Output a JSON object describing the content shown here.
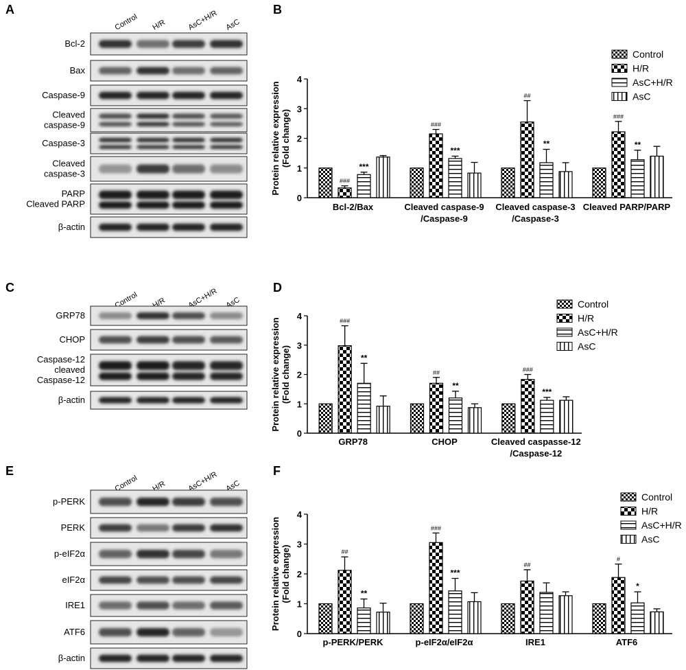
{
  "figure": {
    "blots": [
      {
        "panel_label": "A",
        "lane_labels": [
          "Control",
          "H/R",
          "AsC+H/R",
          "AsC"
        ],
        "rows": [
          {
            "label": "Bcl-2",
            "intensity": [
              0.85,
              0.55,
              0.8,
              0.85
            ]
          },
          {
            "label": "Bax",
            "intensity": [
              0.6,
              0.85,
              0.55,
              0.6
            ]
          },
          {
            "label": "Caspase-9",
            "intensity": [
              0.9,
              0.9,
              0.9,
              0.9
            ]
          },
          {
            "label": "Cleaved\ncaspase-9",
            "intensity": [
              0.7,
              0.85,
              0.7,
              0.65
            ],
            "double": true
          },
          {
            "label": "Caspase-3",
            "intensity": [
              0.85,
              0.85,
              0.85,
              0.85
            ],
            "double": true
          },
          {
            "label": "Cleaved\ncaspase-3",
            "intensity": [
              0.35,
              0.8,
              0.55,
              0.4
            ]
          },
          {
            "label": "PARP\nCleaved PARP",
            "intensity": [
              0.95,
              0.95,
              0.95,
              0.95
            ],
            "double": true,
            "tall": true
          },
          {
            "label": "β-actin",
            "intensity": [
              0.9,
              0.9,
              0.9,
              0.9
            ]
          }
        ]
      },
      {
        "panel_label": "C",
        "lane_labels": [
          "Control",
          "H/R",
          "AsC+H/R",
          "AsC"
        ],
        "rows": [
          {
            "label": "GRP78",
            "intensity": [
              0.4,
              0.85,
              0.7,
              0.4
            ]
          },
          {
            "label": "CHOP",
            "intensity": [
              0.7,
              0.8,
              0.7,
              0.65
            ]
          },
          {
            "label": "Caspase-12\ncleaved\nCaspase-12",
            "intensity": [
              0.95,
              0.95,
              0.9,
              0.9
            ],
            "double": true,
            "tall": true
          },
          {
            "label": "β-actin",
            "intensity": [
              0.9,
              0.9,
              0.9,
              0.9
            ]
          }
        ]
      },
      {
        "panel_label": "E",
        "lane_labels": [
          "Control",
          "H/R",
          "AsC+H/R",
          "AsC"
        ],
        "rows": [
          {
            "label": "p-PERK",
            "intensity": [
              0.7,
              0.9,
              0.8,
              0.7
            ]
          },
          {
            "label": "PERK",
            "intensity": [
              0.8,
              0.5,
              0.8,
              0.85
            ]
          },
          {
            "label": "p-eIF2α",
            "intensity": [
              0.6,
              0.85,
              0.75,
              0.5
            ]
          },
          {
            "label": "eIF2α",
            "intensity": [
              0.75,
              0.7,
              0.7,
              0.75
            ]
          },
          {
            "label": "IRE1",
            "intensity": [
              0.55,
              0.7,
              0.55,
              0.65
            ]
          },
          {
            "label": "ATF6",
            "intensity": [
              0.7,
              0.9,
              0.6,
              0.35
            ]
          },
          {
            "label": "β-actin",
            "intensity": [
              0.9,
              0.9,
              0.9,
              0.9
            ]
          }
        ]
      }
    ]
  },
  "chart_data": [
    {
      "panel_label": "B",
      "type": "bar",
      "ylabel": "Protein relative expression\n(Fold change)",
      "ylim": [
        0,
        4
      ],
      "yticks": [
        0,
        1,
        2,
        3,
        4
      ],
      "legend": [
        "Control",
        "H/R",
        "AsC+H/R",
        "AsC"
      ],
      "legend_position": "top-right",
      "categories": [
        "Bcl-2/Bax",
        "Cleaved caspase-9\n/Caspase-9",
        "Cleaved caspase-3\n/Caspase-3",
        "Cleaved PARP/PARP"
      ],
      "series": [
        {
          "name": "Control",
          "values": [
            1,
            1,
            1,
            1
          ],
          "errors": [
            0,
            0,
            0,
            0
          ],
          "marks": [
            "",
            "",
            "",
            ""
          ]
        },
        {
          "name": "H/R",
          "values": [
            0.33,
            2.15,
            2.55,
            2.22
          ],
          "errors": [
            0.07,
            0.15,
            0.72,
            0.35
          ],
          "marks": [
            "###",
            "###",
            "##",
            "###"
          ]
        },
        {
          "name": "AsC+H/R",
          "values": [
            0.78,
            1.32,
            1.18,
            1.28
          ],
          "errors": [
            0.08,
            0.08,
            0.45,
            0.32
          ],
          "marks": [
            "***",
            "***",
            "**",
            "**"
          ]
        },
        {
          "name": "AsC",
          "values": [
            1.37,
            0.83,
            0.88,
            1.4
          ],
          "errors": [
            0.05,
            0.36,
            0.3,
            0.33
          ],
          "marks": [
            "",
            "",
            "",
            ""
          ]
        }
      ]
    },
    {
      "panel_label": "D",
      "type": "bar",
      "ylabel": "Protein relative expression\n(Fold change)",
      "ylim": [
        0,
        4
      ],
      "yticks": [
        0,
        1,
        2,
        3,
        4
      ],
      "legend": [
        "Control",
        "H/R",
        "AsC+H/R",
        "AsC"
      ],
      "legend_position": "top-right",
      "categories": [
        "GRP78",
        "CHOP",
        "Cleaved caspasse-12\n/Caspase-12"
      ],
      "series": [
        {
          "name": "Control",
          "values": [
            1,
            1,
            1
          ],
          "errors": [
            0,
            0,
            0
          ],
          "marks": [
            "",
            "",
            ""
          ]
        },
        {
          "name": "H/R",
          "values": [
            2.98,
            1.7,
            1.83
          ],
          "errors": [
            0.68,
            0.2,
            0.17
          ],
          "marks": [
            "###",
            "##",
            "###"
          ]
        },
        {
          "name": "AsC+H/R",
          "values": [
            1.7,
            1.2,
            1.12
          ],
          "errors": [
            0.68,
            0.23,
            0.1
          ],
          "marks": [
            "**",
            "**",
            "***"
          ]
        },
        {
          "name": "AsC",
          "values": [
            0.92,
            0.87,
            1.12
          ],
          "errors": [
            0.35,
            0.13,
            0.12
          ],
          "marks": [
            "",
            "",
            ""
          ]
        }
      ]
    },
    {
      "panel_label": "F",
      "type": "bar",
      "ylabel": "Protein relative expression\n(Fold change)",
      "ylim": [
        0,
        4
      ],
      "yticks": [
        0,
        1,
        2,
        3,
        4
      ],
      "legend": [
        "Control",
        "H/R",
        "AsC+H/R",
        "AsC"
      ],
      "legend_position": "top-right",
      "categories": [
        "p-PERK/PERK",
        "p-eIF2α/eIF2α",
        "IRE1",
        "ATF6"
      ],
      "series": [
        {
          "name": "Control",
          "values": [
            1,
            1,
            1,
            1
          ],
          "errors": [
            0,
            0,
            0,
            0
          ],
          "marks": [
            "",
            "",
            "",
            ""
          ]
        },
        {
          "name": "H/R",
          "values": [
            2.12,
            3.05,
            1.76,
            1.88
          ],
          "errors": [
            0.45,
            0.32,
            0.38,
            0.45
          ],
          "marks": [
            "##",
            "###",
            "##",
            "#"
          ]
        },
        {
          "name": "AsC+H/R",
          "values": [
            0.86,
            1.43,
            1.38,
            1.03
          ],
          "errors": [
            0.3,
            0.42,
            0.32,
            0.37
          ],
          "marks": [
            "**",
            "***",
            "",
            "*"
          ]
        },
        {
          "name": "AsC",
          "values": [
            0.72,
            1.07,
            1.27,
            0.73
          ],
          "errors": [
            0.3,
            0.3,
            0.13,
            0.1
          ],
          "marks": [
            "",
            "",
            "",
            ""
          ]
        }
      ]
    }
  ]
}
